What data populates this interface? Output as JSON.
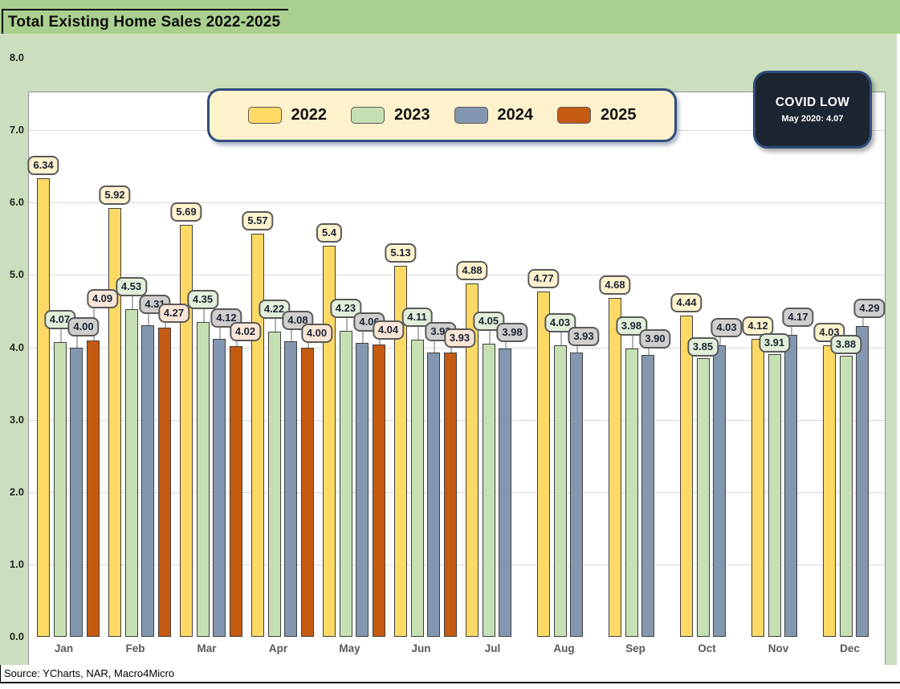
{
  "header": {
    "title": "Total Existing Home Sales 2022-2025"
  },
  "callout": {
    "title": "COVID LOW",
    "subtitle": "May 2020: 4.07"
  },
  "source": {
    "text": "Source: YCharts, NAR, Macro4Micro"
  },
  "colors": {
    "header_green": "#A9D08E",
    "chart_background": "#CBDFBE",
    "plot_background": "#FFFFFF",
    "gridline": "#D9D9D9",
    "legend_background": "#FDF2CC",
    "box_border_blue": "#2E4D7B",
    "covid_box_background": "#1E2532",
    "label_border": "#595959"
  },
  "chart_data": {
    "type": "bar",
    "title": "Total Existing Home Sales 2022-2025",
    "categories": [
      "Jan",
      "Feb",
      "Mar",
      "Apr",
      "May",
      "Jun",
      "Jul",
      "Aug",
      "Sep",
      "Oct",
      "Nov",
      "Dec"
    ],
    "series": [
      {
        "name": "2022",
        "color": "#FFD966",
        "label_fill": "#FFF2CC",
        "values": [
          "6.34",
          "5.92",
          "5.69",
          "5.57",
          "5.4",
          "5.13",
          "4.88",
          "4.77",
          "4.68",
          "4.44",
          "4.12",
          "4.03"
        ]
      },
      {
        "name": "2023",
        "color": "#C6E0B4",
        "label_fill": "#E2EFDA",
        "values": [
          "4.07",
          "4.53",
          "4.35",
          "4.22",
          "4.23",
          "4.11",
          "4.05",
          "4.03",
          "3.98",
          "3.85",
          "3.91",
          "3.88"
        ]
      },
      {
        "name": "2024",
        "color": "#8497B0",
        "label_fill": "#D0CECE",
        "values": [
          "4.00",
          "4.31",
          "4.12",
          "4.08",
          "4.06",
          "3.93",
          "3.98",
          "3.93",
          "3.90",
          "4.03",
          "4.17",
          "4.29"
        ]
      },
      {
        "name": "2025",
        "color": "#C55A11",
        "label_fill": "#FBE5D6",
        "values": [
          "4.09",
          "4.27",
          "4.02",
          "4.00",
          "4.04",
          "3.93",
          null,
          null,
          null,
          null,
          null,
          null
        ]
      }
    ],
    "ylim": [
      0,
      8
    ],
    "ytick_step": 1.0,
    "yticks": [
      "0.0",
      "1.0",
      "2.0",
      "3.0",
      "4.0",
      "5.0",
      "6.0",
      "7.0",
      "8.0"
    ],
    "xlabel": "",
    "ylabel": "",
    "grid": true,
    "legend_position": "top-center",
    "annotation": "COVID LOW — May 2020: 4.07"
  }
}
